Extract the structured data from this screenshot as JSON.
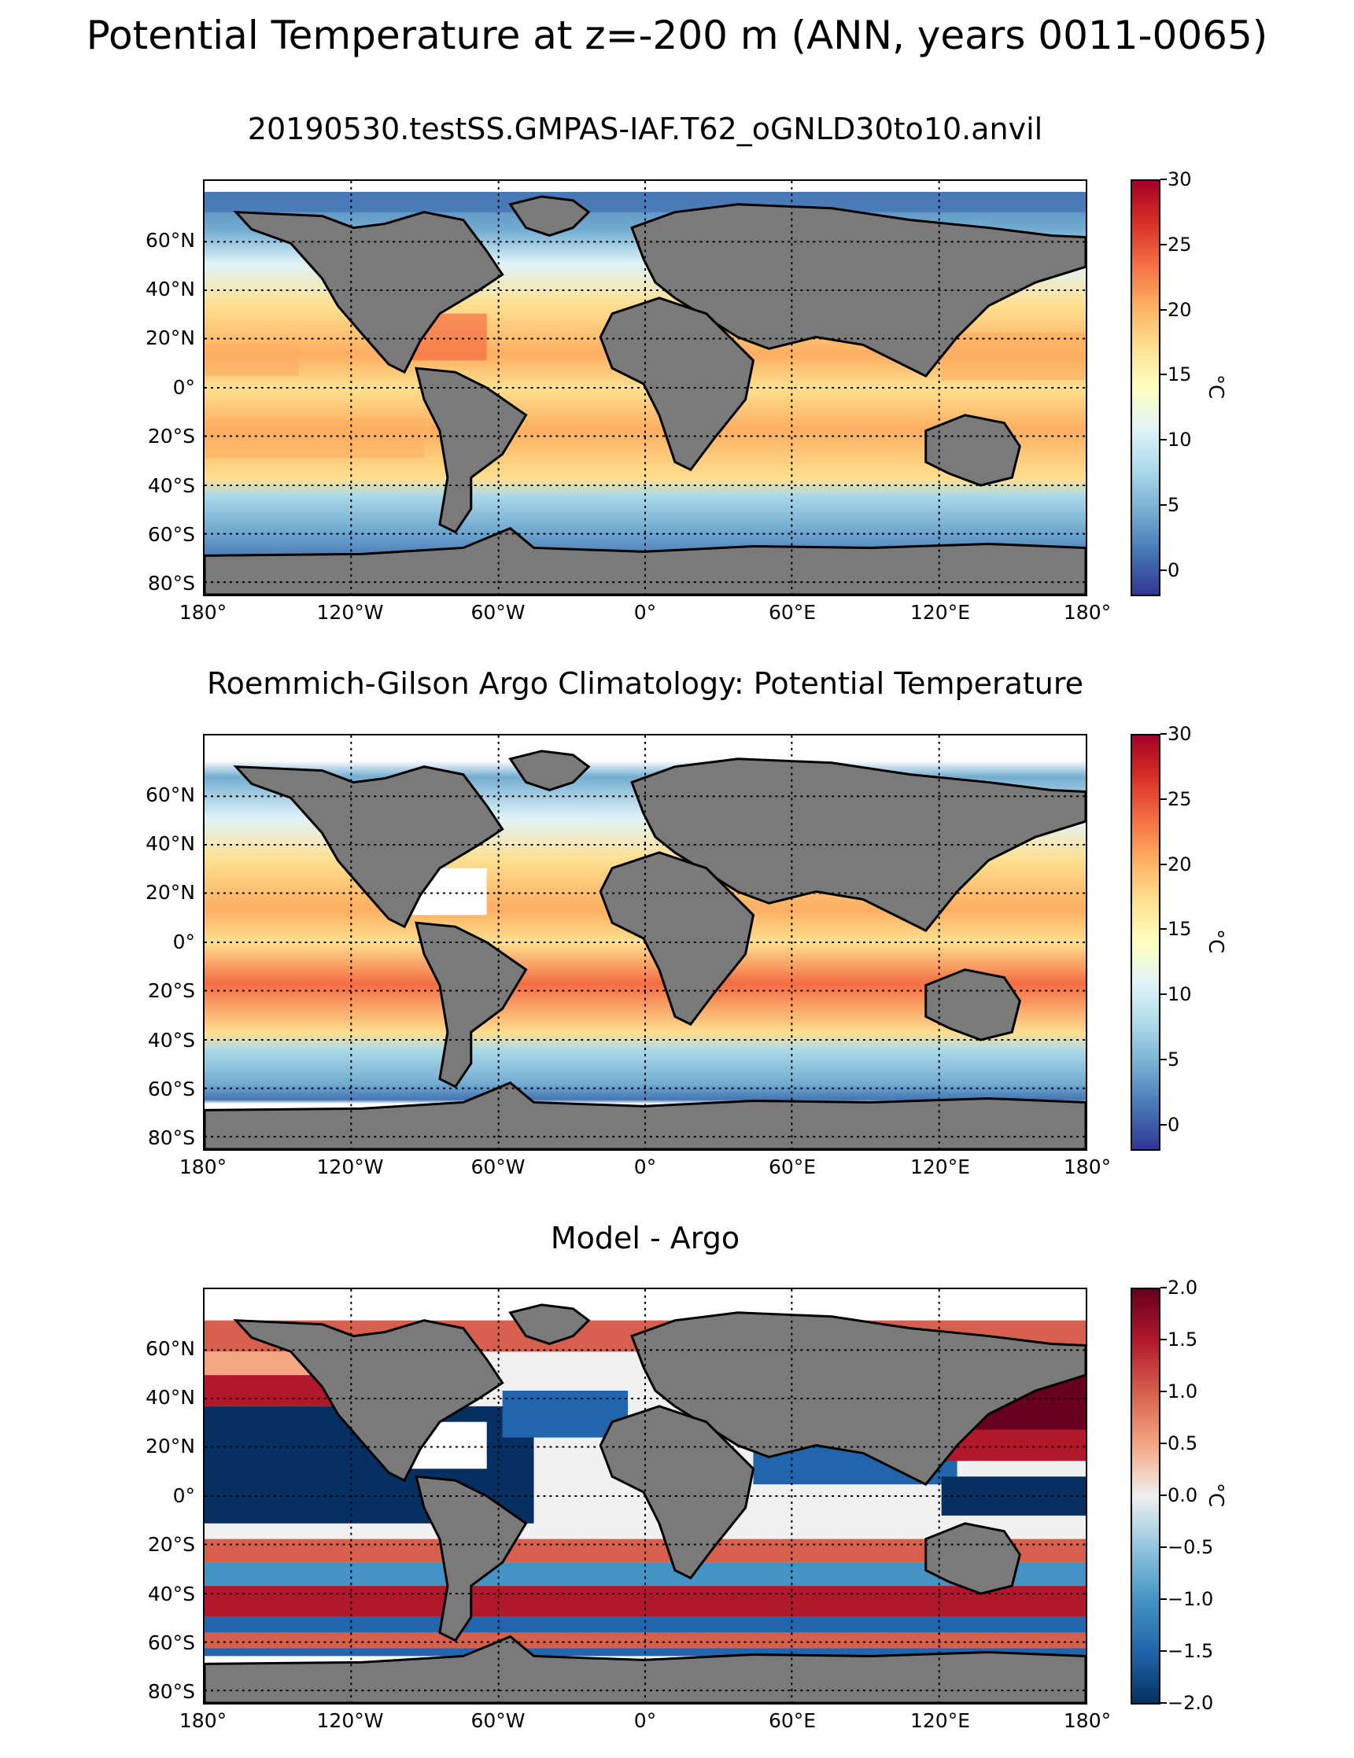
{
  "title": "Potential Temperature at z=-200 m (ANN, years 0011-0065)",
  "panels": [
    {
      "title": "20190530.testSS.GMPAS-IAF.T62_oGNLD30to10.anvil"
    },
    {
      "title": "Roemmich-Gilson Argo Climatology: Potential Temperature"
    },
    {
      "title": "Model - Argo"
    }
  ],
  "lat_labels": [
    "60°N",
    "40°N",
    "20°N",
    "0°",
    "20°S",
    "40°S",
    "60°S",
    "80°S"
  ],
  "lon_labels": [
    "180°",
    "120°W",
    "60°W",
    "0°",
    "60°E",
    "120°E",
    "180°"
  ],
  "colorbars": [
    {
      "unit": "°C",
      "ticks": [
        "30",
        "25",
        "20",
        "15",
        "10",
        "5",
        "0"
      ]
    },
    {
      "unit": "°C",
      "ticks": [
        "30",
        "25",
        "20",
        "15",
        "10",
        "5",
        "0"
      ]
    },
    {
      "unit": "°C",
      "ticks": [
        "2.0",
        "1.5",
        "1.0",
        "0.5",
        "0.0",
        "−0.5",
        "−1.0",
        "−1.5",
        "−2.0"
      ]
    }
  ],
  "colors": {
    "land": "#7a7a7a",
    "missing": "#ffffff",
    "rdylbu": [
      "#313695",
      "#4575b4",
      "#74add1",
      "#abd9e9",
      "#e0f3f8",
      "#ffffbf",
      "#fee090",
      "#fdae61",
      "#f46d43",
      "#d73027",
      "#a50026"
    ],
    "rdbu": [
      "#053061",
      "#2166ac",
      "#4393c3",
      "#92c5de",
      "#f0f0f0",
      "#f4a582",
      "#d6604d",
      "#b2182b",
      "#67001f"
    ]
  }
}
